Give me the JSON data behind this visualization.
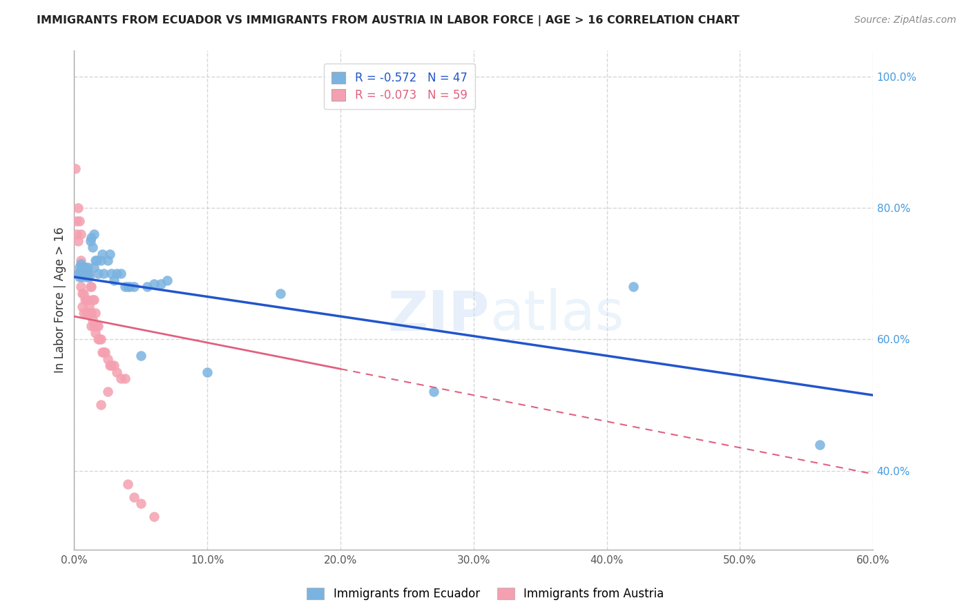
{
  "title": "IMMIGRANTS FROM ECUADOR VS IMMIGRANTS FROM AUSTRIA IN LABOR FORCE | AGE > 16 CORRELATION CHART",
  "source": "Source: ZipAtlas.com",
  "ylabel": "In Labor Force | Age > 16",
  "xlim": [
    0.0,
    0.6
  ],
  "ylim": [
    0.28,
    1.04
  ],
  "xticks": [
    0.0,
    0.1,
    0.2,
    0.3,
    0.4,
    0.5,
    0.6
  ],
  "xticklabels": [
    "0.0%",
    "10.0%",
    "20.0%",
    "30.0%",
    "40.0%",
    "50.0%",
    "60.0%"
  ],
  "yticks_right": [
    0.4,
    0.6,
    0.8,
    1.0
  ],
  "yticklabels_right": [
    "40.0%",
    "60.0%",
    "80.0%",
    "100.0%"
  ],
  "grid_color": "#cccccc",
  "background_color": "#ffffff",
  "ecuador_color": "#7ab3e0",
  "austria_color": "#f4a0b0",
  "ecuador_line_color": "#2255cc",
  "austria_line_color": "#e06080",
  "ecuador_R": -0.572,
  "ecuador_N": 47,
  "austria_R": -0.073,
  "austria_N": 59,
  "watermark": "ZIPatlas",
  "ecuador_line_x0": 0.0,
  "ecuador_line_y0": 0.695,
  "ecuador_line_x1": 0.6,
  "ecuador_line_y1": 0.515,
  "austria_line_x0": 0.0,
  "austria_line_y0": 0.635,
  "austria_line_x1": 0.6,
  "austria_line_y1": 0.395,
  "ecuador_x": [
    0.003,
    0.004,
    0.004,
    0.005,
    0.005,
    0.006,
    0.006,
    0.007,
    0.007,
    0.008,
    0.008,
    0.009,
    0.009,
    0.01,
    0.01,
    0.011,
    0.012,
    0.013,
    0.014,
    0.015,
    0.015,
    0.016,
    0.017,
    0.018,
    0.02,
    0.021,
    0.022,
    0.025,
    0.027,
    0.028,
    0.03,
    0.032,
    0.035,
    0.038,
    0.04,
    0.042,
    0.045,
    0.05,
    0.055,
    0.06,
    0.065,
    0.07,
    0.1,
    0.155,
    0.27,
    0.42,
    0.56
  ],
  "ecuador_y": [
    0.7,
    0.71,
    0.695,
    0.705,
    0.715,
    0.7,
    0.695,
    0.71,
    0.7,
    0.7,
    0.71,
    0.695,
    0.705,
    0.7,
    0.71,
    0.695,
    0.75,
    0.755,
    0.74,
    0.76,
    0.71,
    0.72,
    0.72,
    0.7,
    0.72,
    0.73,
    0.7,
    0.72,
    0.73,
    0.7,
    0.69,
    0.7,
    0.7,
    0.68,
    0.68,
    0.68,
    0.68,
    0.575,
    0.68,
    0.685,
    0.685,
    0.69,
    0.55,
    0.67,
    0.52,
    0.68,
    0.44
  ],
  "austria_x": [
    0.001,
    0.002,
    0.002,
    0.003,
    0.003,
    0.003,
    0.004,
    0.004,
    0.005,
    0.005,
    0.005,
    0.006,
    0.006,
    0.006,
    0.007,
    0.007,
    0.007,
    0.008,
    0.008,
    0.009,
    0.009,
    0.009,
    0.01,
    0.01,
    0.01,
    0.011,
    0.011,
    0.012,
    0.012,
    0.013,
    0.013,
    0.013,
    0.014,
    0.014,
    0.015,
    0.015,
    0.016,
    0.016,
    0.017,
    0.018,
    0.018,
    0.019,
    0.02,
    0.021,
    0.022,
    0.023,
    0.025,
    0.027,
    0.028,
    0.03,
    0.032,
    0.035,
    0.038,
    0.04,
    0.045,
    0.05,
    0.06,
    0.02,
    0.025
  ],
  "austria_y": [
    0.86,
    0.78,
    0.76,
    0.8,
    0.75,
    0.7,
    0.78,
    0.7,
    0.76,
    0.72,
    0.68,
    0.7,
    0.67,
    0.65,
    0.7,
    0.67,
    0.64,
    0.7,
    0.66,
    0.7,
    0.66,
    0.64,
    0.7,
    0.66,
    0.64,
    0.7,
    0.65,
    0.68,
    0.64,
    0.68,
    0.64,
    0.62,
    0.66,
    0.63,
    0.66,
    0.62,
    0.64,
    0.61,
    0.62,
    0.62,
    0.6,
    0.6,
    0.6,
    0.58,
    0.58,
    0.58,
    0.57,
    0.56,
    0.56,
    0.56,
    0.55,
    0.54,
    0.54,
    0.38,
    0.36,
    0.35,
    0.33,
    0.5,
    0.52
  ]
}
